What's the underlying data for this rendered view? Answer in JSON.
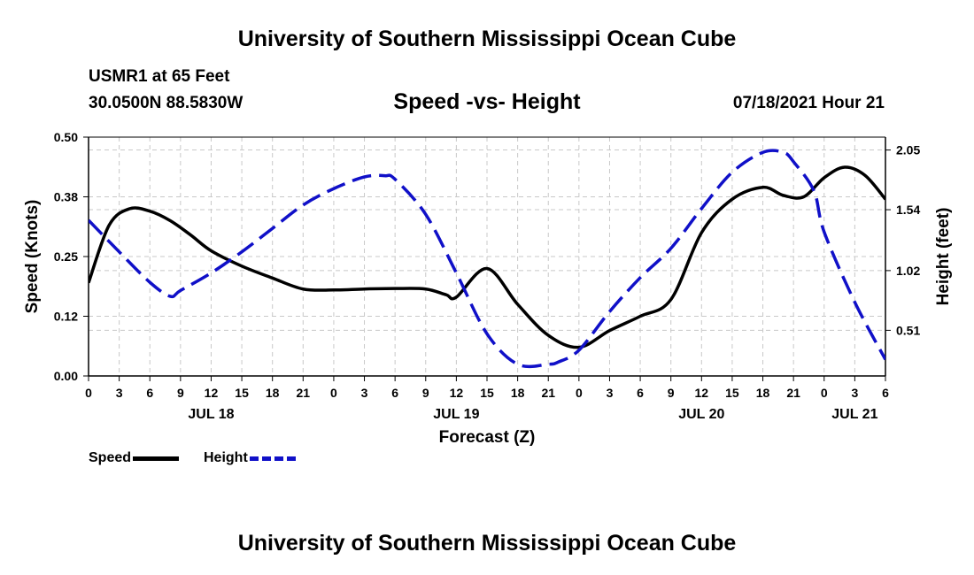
{
  "header": {
    "top_title": "University of Southern Mississippi Ocean Cube",
    "station": "USMR1 at 65 Feet",
    "coords": "30.0500N  88.5830W",
    "chart_title": "Speed -vs- Height",
    "timestamp": "07/18/2021 Hour 21"
  },
  "footer": {
    "bottom_title": "University of Southern Mississippi Ocean Cube"
  },
  "legend": {
    "speed_label": "Speed",
    "height_label": "Height"
  },
  "colors": {
    "speed": "#000000",
    "height": "#1010c8",
    "grid": "#c8c8c8"
  },
  "chart_data": {
    "type": "line",
    "xlabel": "Forecast (Z)",
    "ylabel_left": "Speed (Knots)",
    "ylabel_right": "Height (feet)",
    "xlim": [
      0,
      78
    ],
    "ylim_left": [
      0,
      0.5
    ],
    "ylim_right": [
      0.12,
      2.16
    ],
    "grid": true,
    "x_ticks": [
      0,
      3,
      6,
      9,
      12,
      15,
      18,
      21,
      24,
      27,
      30,
      33,
      36,
      39,
      42,
      45,
      48,
      51,
      54,
      57,
      60,
      63,
      66,
      69,
      72,
      75,
      78
    ],
    "x_tick_labels": [
      "0",
      "3",
      "6",
      "9",
      "12",
      "15",
      "18",
      "21",
      "0",
      "3",
      "6",
      "9",
      "12",
      "15",
      "18",
      "21",
      "0",
      "3",
      "6",
      "9",
      "12",
      "15",
      "18",
      "21",
      "0",
      "3",
      "6"
    ],
    "left_ticks": [
      0.0,
      0.125,
      0.25,
      0.375,
      0.5
    ],
    "left_tick_labels": [
      "0.00",
      "0.12",
      "0.25",
      "0.38",
      "0.50"
    ],
    "right_ticks": [
      0.51,
      1.02,
      1.54,
      2.05
    ],
    "right_tick_labels": [
      "0.51",
      "1.02",
      "1.54",
      "2.05"
    ],
    "date_labels": [
      {
        "label": "JUL 18",
        "x": 12
      },
      {
        "label": "JUL 19",
        "x": 36
      },
      {
        "label": "JUL 20",
        "x": 60
      },
      {
        "label": "JUL 21",
        "x": 75
      }
    ],
    "series": [
      {
        "name": "Speed",
        "axis": "left",
        "style": "solid",
        "x": [
          0,
          2,
          4,
          6,
          8,
          10,
          12,
          15,
          18,
          21,
          24,
          27,
          30,
          33,
          35,
          36,
          39,
          42,
          45,
          48,
          51,
          54,
          57,
          60,
          63,
          66,
          68,
          70,
          72,
          74,
          76,
          78
        ],
        "y": [
          0.195,
          0.315,
          0.35,
          0.345,
          0.325,
          0.295,
          0.262,
          0.23,
          0.205,
          0.182,
          0.18,
          0.182,
          0.183,
          0.182,
          0.17,
          0.165,
          0.225,
          0.15,
          0.085,
          0.06,
          0.095,
          0.125,
          0.16,
          0.3,
          0.37,
          0.395,
          0.378,
          0.375,
          0.415,
          0.437,
          0.42,
          0.37
        ]
      },
      {
        "name": "Height",
        "axis": "right",
        "style": "dashed",
        "x": [
          0,
          3,
          6,
          8,
          9,
          12,
          15,
          18,
          21,
          24,
          27,
          29,
          30,
          33,
          36,
          39,
          42,
          45,
          46,
          48,
          51,
          54,
          57,
          60,
          63,
          66,
          68,
          69,
          71,
          72,
          75,
          78
        ],
        "y": [
          1.45,
          1.18,
          0.92,
          0.8,
          0.85,
          1.0,
          1.18,
          1.38,
          1.58,
          1.72,
          1.82,
          1.83,
          1.8,
          1.5,
          1.0,
          0.48,
          0.22,
          0.22,
          0.24,
          0.34,
          0.67,
          0.96,
          1.21,
          1.55,
          1.86,
          2.03,
          2.03,
          1.95,
          1.7,
          1.35,
          0.75,
          0.26
        ]
      }
    ]
  }
}
